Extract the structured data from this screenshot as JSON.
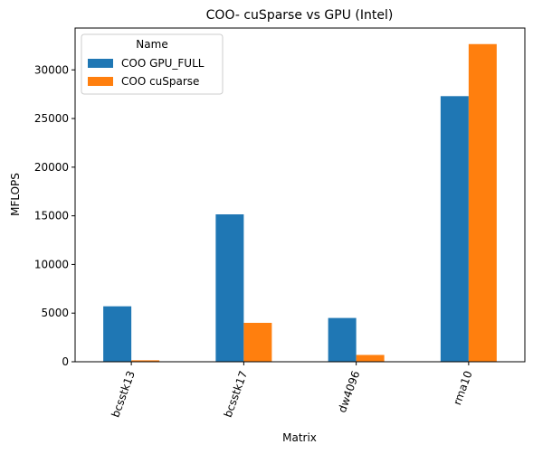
{
  "chart_data": {
    "type": "bar",
    "title": "COO- cuSparse vs GPU (Intel)",
    "xlabel": "Matrix",
    "ylabel": "MFLOPS",
    "categories": [
      "bcsstk13",
      "bcsstk17",
      "dw4096",
      "rma10"
    ],
    "series": [
      {
        "name": "COO GPU_FULL",
        "color": "#1f77b4",
        "values": [
          5700,
          15150,
          4500,
          27300
        ]
      },
      {
        "name": "COO cuSparse",
        "color": "#ff7f0e",
        "values": [
          150,
          4000,
          700,
          32650
        ]
      }
    ],
    "ylim": [
      0,
      34300
    ],
    "yticks": [
      0,
      5000,
      10000,
      15000,
      20000,
      25000,
      30000
    ],
    "legend": {
      "title": "Name",
      "placement": "top-left"
    },
    "grid": false
  }
}
